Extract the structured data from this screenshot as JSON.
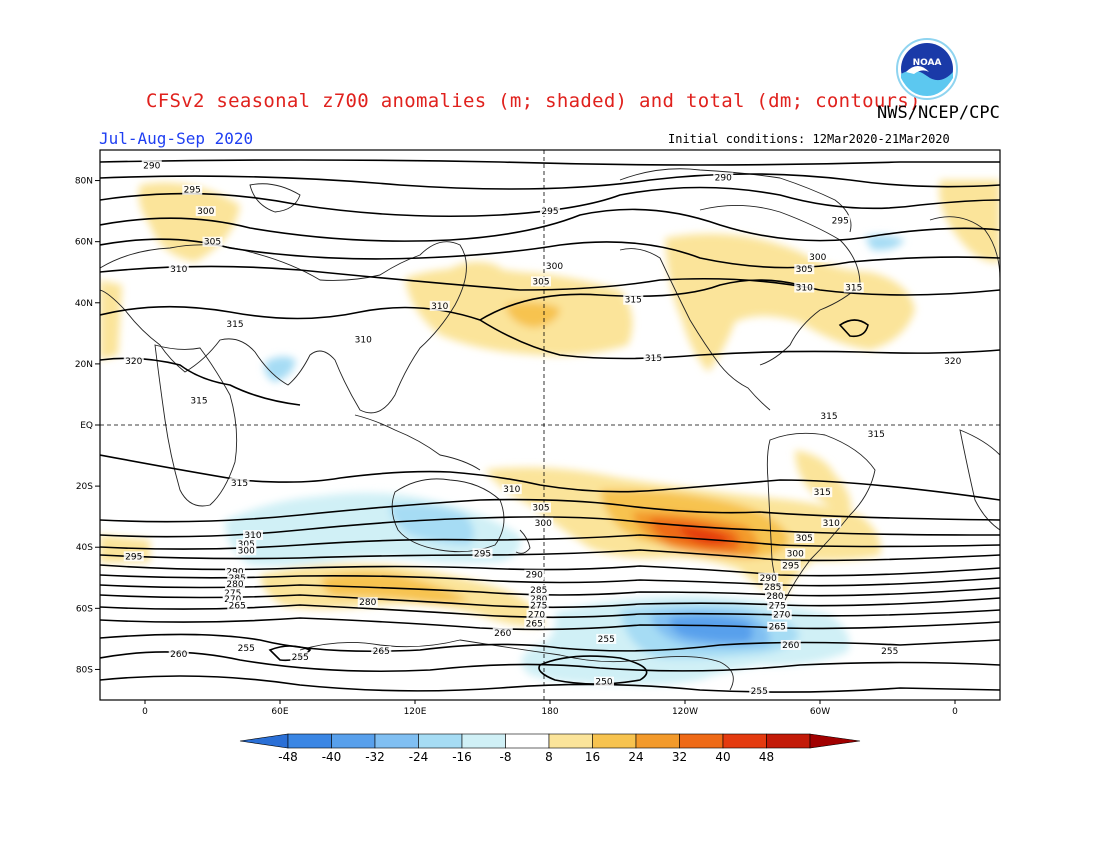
{
  "header": {
    "title": "CFSv2 seasonal z700 anomalies (m; shaded) and total (dm; contours)",
    "agency": "NWS/NCEP/CPC",
    "period": "Jul-Aug-Sep 2020",
    "initial_conditions": "Initial conditions: 12Mar2020-21Mar2020",
    "logo_text": "NOAA"
  },
  "axes": {
    "lat_labels": [
      "80N",
      "60N",
      "40N",
      "20N",
      "EQ",
      "20S",
      "40S",
      "60S",
      "80S"
    ],
    "lon_labels": [
      "0",
      "60E",
      "120E",
      "180",
      "120W",
      "60W",
      "0"
    ]
  },
  "colorbar": {
    "labels": [
      "-48",
      "-40",
      "-32",
      "-24",
      "-16",
      "-8",
      "8",
      "16",
      "24",
      "32",
      "40",
      "48"
    ],
    "colors": [
      "#2a6fd6",
      "#3a86e4",
      "#58a0ec",
      "#80bff2",
      "#a6dcf4",
      "#d0f0f6",
      "#ffffff",
      "#fbe49a",
      "#f7c34f",
      "#f39a2b",
      "#ef6a17",
      "#e43a0f",
      "#c31a08",
      "#a10000"
    ]
  },
  "contour_labels": [
    {
      "text": "290",
      "lon": 3,
      "lat": 85
    },
    {
      "text": "295",
      "lon": 21,
      "lat": 77
    },
    {
      "text": "300",
      "lon": 27,
      "lat": 70
    },
    {
      "text": "305",
      "lon": 30,
      "lat": 60
    },
    {
      "text": "310",
      "lon": 15,
      "lat": 51
    },
    {
      "text": "315",
      "lon": 40,
      "lat": 33
    },
    {
      "text": "320",
      "lon": -5,
      "lat": 21
    },
    {
      "text": "315",
      "lon": 24,
      "lat": 8
    },
    {
      "text": "310",
      "lon": 97,
      "lat": 28
    },
    {
      "text": "310",
      "lon": 131,
      "lat": 39
    },
    {
      "text": "300",
      "lon": 182,
      "lat": 52
    },
    {
      "text": "305",
      "lon": 176,
      "lat": 47
    },
    {
      "text": "295",
      "lon": 180,
      "lat": 70
    },
    {
      "text": "290",
      "lon": 257,
      "lat": 81
    },
    {
      "text": "295",
      "lon": 309,
      "lat": 67
    },
    {
      "text": "300",
      "lon": 299,
      "lat": 55
    },
    {
      "text": "305",
      "lon": 293,
      "lat": 51
    },
    {
      "text": "310",
      "lon": 293,
      "lat": 45
    },
    {
      "text": "315",
      "lon": 315,
      "lat": 45
    },
    {
      "text": "315",
      "lon": 217,
      "lat": 41
    },
    {
      "text": "315",
      "lon": 226,
      "lat": 22
    },
    {
      "text": "320",
      "lon": 359,
      "lat": 21
    },
    {
      "text": "315",
      "lon": 304,
      "lat": 3
    },
    {
      "text": "315",
      "lon": 325,
      "lat": -3
    },
    {
      "text": "315",
      "lon": 42,
      "lat": -19
    },
    {
      "text": "315",
      "lon": 301,
      "lat": -22
    },
    {
      "text": "310",
      "lon": 163,
      "lat": -21
    },
    {
      "text": "305",
      "lon": 176,
      "lat": -27
    },
    {
      "text": "300",
      "lon": 177,
      "lat": -32
    },
    {
      "text": "310",
      "lon": 305,
      "lat": -32
    },
    {
      "text": "305",
      "lon": 293,
      "lat": -37
    },
    {
      "text": "300",
      "lon": 289,
      "lat": -42
    },
    {
      "text": "295",
      "lon": 287,
      "lat": -46
    },
    {
      "text": "310",
      "lon": 48,
      "lat": -36
    },
    {
      "text": "305",
      "lon": 45,
      "lat": -39
    },
    {
      "text": "300",
      "lon": 45,
      "lat": -41
    },
    {
      "text": "295",
      "lon": -5,
      "lat": -43
    },
    {
      "text": "295",
      "lon": 150,
      "lat": -42
    },
    {
      "text": "290",
      "lon": 40,
      "lat": -48
    },
    {
      "text": "285",
      "lon": 41,
      "lat": -50
    },
    {
      "text": "280",
      "lon": 40,
      "lat": -52
    },
    {
      "text": "275",
      "lon": 39,
      "lat": -55
    },
    {
      "text": "270",
      "lon": 39,
      "lat": -57
    },
    {
      "text": "265",
      "lon": 41,
      "lat": -59
    },
    {
      "text": "280",
      "lon": 99,
      "lat": -58
    },
    {
      "text": "290",
      "lon": 173,
      "lat": -49
    },
    {
      "text": "285",
      "lon": 175,
      "lat": -54
    },
    {
      "text": "280",
      "lon": 175,
      "lat": -57
    },
    {
      "text": "275",
      "lon": 175,
      "lat": -59
    },
    {
      "text": "270",
      "lon": 174,
      "lat": -62
    },
    {
      "text": "265",
      "lon": 173,
      "lat": -65
    },
    {
      "text": "260",
      "lon": 159,
      "lat": -68
    },
    {
      "text": "290",
      "lon": 277,
      "lat": -50
    },
    {
      "text": "285",
      "lon": 279,
      "lat": -53
    },
    {
      "text": "280",
      "lon": 280,
      "lat": -56
    },
    {
      "text": "275",
      "lon": 281,
      "lat": -59
    },
    {
      "text": "270",
      "lon": 283,
      "lat": -62
    },
    {
      "text": "265",
      "lon": 281,
      "lat": -66
    },
    {
      "text": "260",
      "lon": 287,
      "lat": -72
    },
    {
      "text": "255",
      "lon": 205,
      "lat": -70
    },
    {
      "text": "255",
      "lon": 331,
      "lat": -74
    },
    {
      "text": "250",
      "lon": 204,
      "lat": -84
    },
    {
      "text": "255",
      "lon": 273,
      "lat": -87
    },
    {
      "text": "265",
      "lon": 105,
      "lat": -74
    },
    {
      "text": "255",
      "lon": 69,
      "lat": -76
    },
    {
      "text": "260",
      "lon": 15,
      "lat": -75
    },
    {
      "text": "255",
      "lon": 45,
      "lat": -73
    }
  ]
}
